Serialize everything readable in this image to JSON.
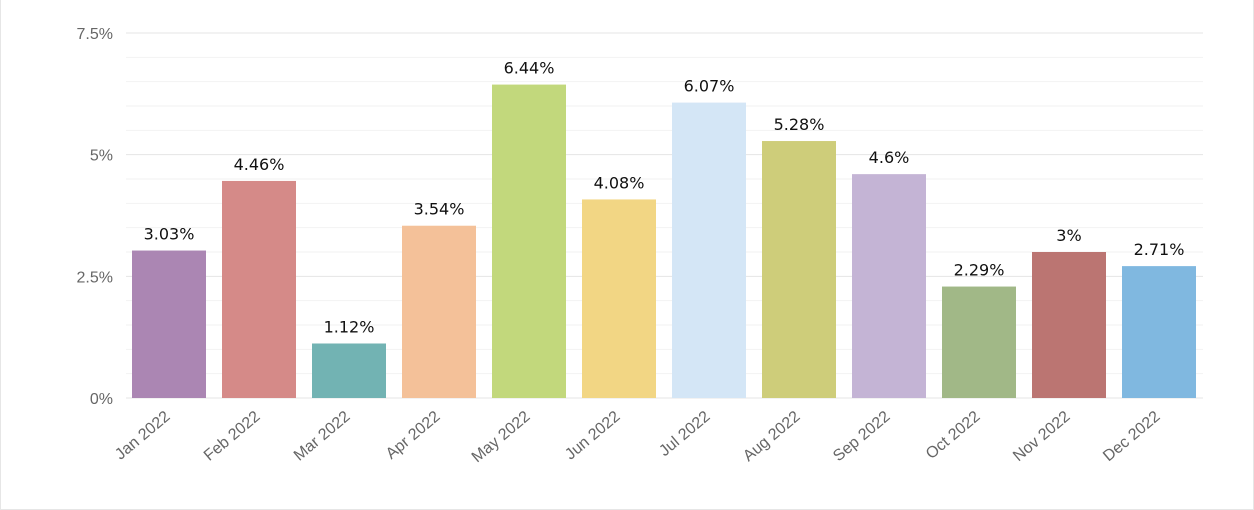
{
  "chart_data": {
    "type": "bar",
    "title": "",
    "xlabel": "",
    "ylabel": "",
    "categories": [
      "Jan 2022",
      "Feb 2022",
      "Mar 2022",
      "Apr 2022",
      "May 2022",
      "Jun 2022",
      "Jul 2022",
      "Aug 2022",
      "Sep 2022",
      "Oct 2022",
      "Nov 2022",
      "Dec 2022"
    ],
    "values": [
      3.03,
      4.46,
      1.12,
      3.54,
      6.44,
      4.08,
      6.07,
      5.28,
      4.6,
      2.29,
      3,
      2.71
    ],
    "data_labels": [
      "3.03%",
      "4.46%",
      "1.12%",
      "3.54%",
      "6.44%",
      "4.08%",
      "6.07%",
      "5.28%",
      "4.6%",
      "2.29%",
      "3%",
      "2.71%"
    ],
    "colors": [
      "#ab86b3",
      "#d58a88",
      "#72b3b3",
      "#f4c199",
      "#c2d87c",
      "#f2d684",
      "#d4e6f6",
      "#cecd7a",
      "#c4b4d5",
      "#a1b887",
      "#bb7572",
      "#80b8e0"
    ],
    "ylim": [
      0,
      7.5
    ],
    "y_ticks": [
      0,
      2.5,
      5,
      7.5
    ],
    "y_tick_labels": [
      "0%",
      "2.5%",
      "5%",
      "7.5%"
    ],
    "grid": true,
    "legend": "none"
  }
}
